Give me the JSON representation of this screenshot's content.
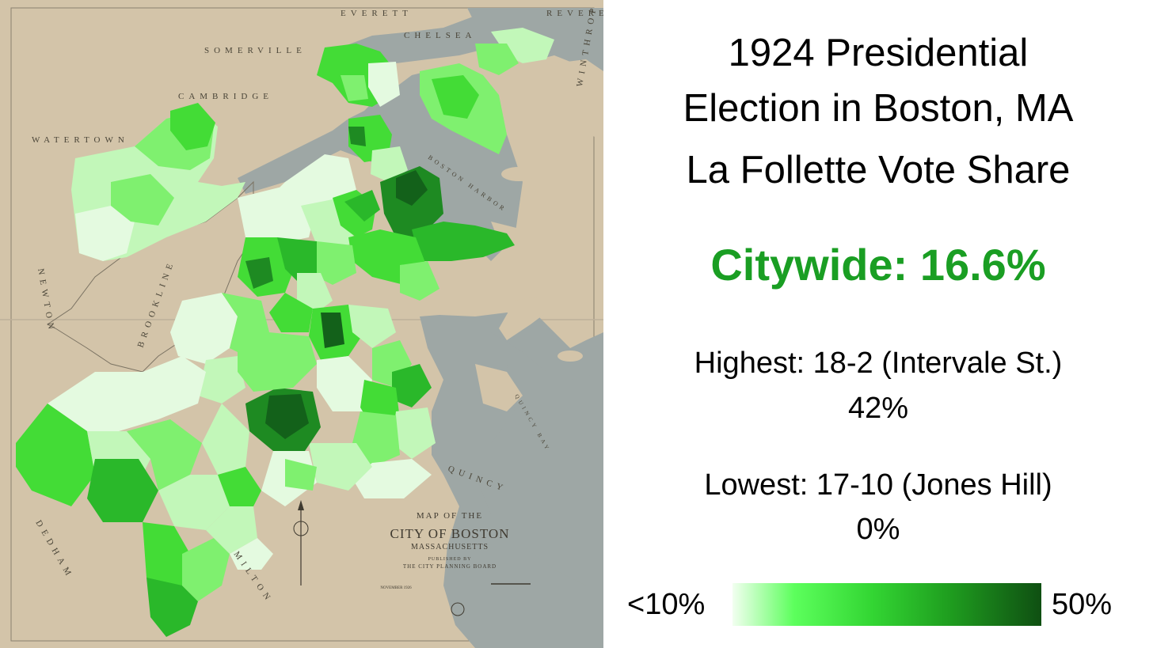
{
  "map": {
    "place_labels": {
      "everett": "EVERETT",
      "revere": "REVERE",
      "chelsea": "CHELSEA",
      "somerville": "SOMERVILLE",
      "cambridge": "CAMBRIDGE",
      "watertown": "WATERTOWN",
      "winthrop": "WINTHROP",
      "boston_harbor": "BOSTON HARBOR",
      "brookline": "BROOKLINE",
      "newton": "NEWTON",
      "quincy": "QUINCY",
      "dedham": "DEDHAM",
      "milton": "MILTON",
      "quincy_bay": "QUINCY BAY"
    },
    "cartouche": {
      "line1": "MAP OF THE",
      "line2": "CITY OF BOSTON",
      "line3": "MASSACHUSETTS",
      "line4": "PUBLISHED BY",
      "line5": "THE CITY PLANNING BOARD",
      "date": "NOVEMBER 1926"
    },
    "fill_colors": {
      "land": "#d3c4a9",
      "water": "#9ea7a5",
      "lightest": "#e4fae0",
      "light": "#c2f7b9",
      "mid_light": "#7ff06f",
      "mid": "#43dc36",
      "strong": "#2ab82a",
      "dark": "#1e8a22",
      "darkest": "#13611a"
    }
  },
  "title": {
    "line1": "1924 Presidential",
    "line2": "Election in Boston, MA",
    "line3": "La Follette Vote Share"
  },
  "citywide": "Citywide: 16.6%",
  "highest": {
    "label": "Highest: 18-2 (Intervale St.)",
    "value": "42%"
  },
  "lowest": {
    "label": "Lowest: 17-10 (Jones Hill)",
    "value": "0%"
  },
  "legend": {
    "min_label": "<10%",
    "max_label": "50%"
  }
}
